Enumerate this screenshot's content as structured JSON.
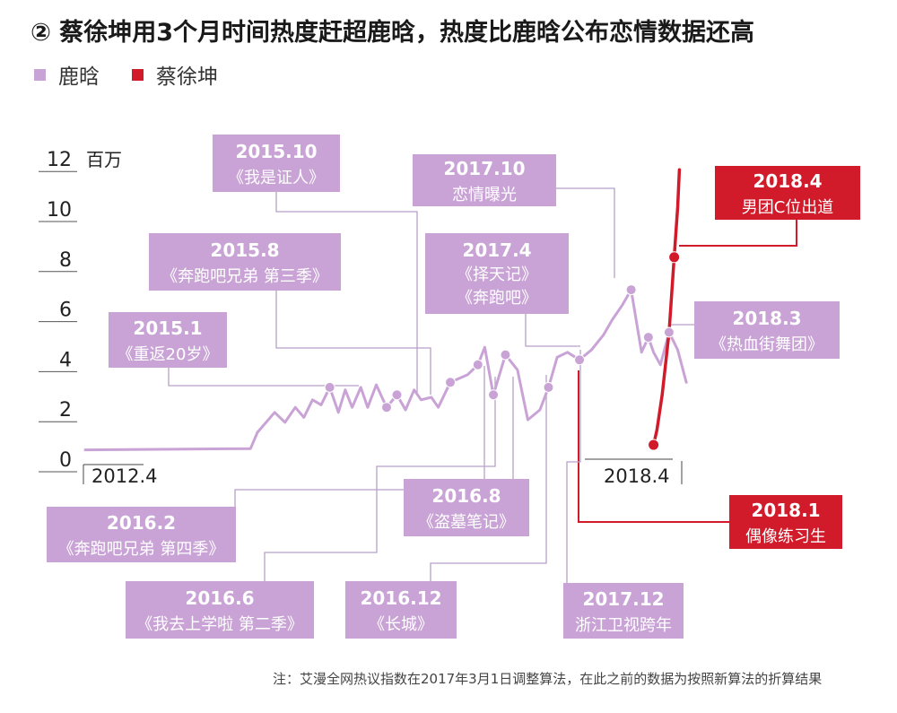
{
  "title": "② 蔡徐坤用3个月时间热度赶超鹿晗，热度比鹿晗公布恋情数据还高",
  "legend": [
    {
      "name": "鹿晗",
      "color": "#c9a3d6"
    },
    {
      "name": "蔡徐坤",
      "color": "#d11a2a"
    }
  ],
  "note": "注：艾漫全网热议指数在2017年3月1日调整算法，在此之前的数据为按照新算法的折算结果",
  "chart_data": {
    "type": "line",
    "yunit": "百万",
    "ylim": [
      0,
      12
    ],
    "yticks": [
      "0",
      "2",
      "4",
      "6",
      "8",
      "10",
      "12"
    ],
    "x_labels": [
      "2012.4",
      "2018.4"
    ],
    "series": [
      {
        "name": "鹿晗",
        "color": "#c9a3d6",
        "points": [
          [
            0.0,
            0.3
          ],
          [
            4.8,
            0.35
          ],
          [
            5.0,
            1.0
          ],
          [
            5.5,
            1.8
          ],
          [
            5.8,
            1.4
          ],
          [
            6.1,
            2.0
          ],
          [
            6.35,
            1.6
          ],
          [
            6.6,
            2.3
          ],
          [
            6.85,
            2.1
          ],
          [
            7.1,
            2.8
          ],
          [
            7.35,
            1.8
          ],
          [
            7.55,
            2.7
          ],
          [
            7.75,
            2.0
          ],
          [
            8.0,
            2.8
          ],
          [
            8.2,
            2.0
          ],
          [
            8.45,
            2.9
          ],
          [
            8.75,
            2.0
          ],
          [
            9.05,
            2.5
          ],
          [
            9.3,
            1.9
          ],
          [
            9.55,
            2.7
          ],
          [
            9.75,
            2.3
          ],
          [
            10.05,
            2.4
          ],
          [
            10.25,
            2.0
          ],
          [
            10.6,
            3.0
          ],
          [
            11.1,
            3.3
          ],
          [
            11.4,
            3.7
          ],
          [
            11.6,
            4.4
          ],
          [
            11.85,
            2.5
          ],
          [
            12.2,
            4.1
          ],
          [
            12.55,
            3.5
          ],
          [
            12.85,
            1.5
          ],
          [
            13.2,
            1.9
          ],
          [
            13.45,
            2.8
          ],
          [
            13.7,
            4.0
          ],
          [
            14.0,
            4.2
          ],
          [
            14.35,
            3.9
          ],
          [
            14.7,
            4.3
          ],
          [
            15.05,
            4.9
          ],
          [
            15.3,
            5.5
          ],
          [
            15.6,
            6.1
          ],
          [
            15.85,
            6.7
          ],
          [
            16.15,
            4.2
          ],
          [
            16.35,
            4.8
          ],
          [
            16.5,
            4.2
          ],
          [
            16.7,
            3.7
          ],
          [
            16.95,
            5.0
          ],
          [
            17.2,
            4.3
          ],
          [
            17.45,
            3.0
          ]
        ]
      },
      {
        "name": "蔡徐坤",
        "color": "#d11a2a",
        "points": [
          [
            16.5,
            0.5
          ],
          [
            16.6,
            1.1
          ],
          [
            16.75,
            2.5
          ],
          [
            16.95,
            5.0
          ],
          [
            17.1,
            8.0
          ],
          [
            17.2,
            10.0
          ],
          [
            17.25,
            11.5
          ]
        ]
      }
    ],
    "markers": [
      {
        "series": 0,
        "x": 7.1,
        "y": 2.8
      },
      {
        "series": 0,
        "x": 8.75,
        "y": 2.0
      },
      {
        "series": 0,
        "x": 9.05,
        "y": 2.5
      },
      {
        "series": 0,
        "x": 10.6,
        "y": 3.0
      },
      {
        "series": 0,
        "x": 11.4,
        "y": 3.7
      },
      {
        "series": 0,
        "x": 11.85,
        "y": 2.5
      },
      {
        "series": 0,
        "x": 12.2,
        "y": 4.1
      },
      {
        "series": 0,
        "x": 13.45,
        "y": 2.8
      },
      {
        "series": 0,
        "x": 14.35,
        "y": 3.9
      },
      {
        "series": 0,
        "x": 15.85,
        "y": 6.7
      },
      {
        "series": 0,
        "x": 16.35,
        "y": 4.8
      },
      {
        "series": 0,
        "x": 16.95,
        "y": 5.0
      },
      {
        "series": 1,
        "x": 16.5,
        "y": 0.5
      },
      {
        "series": 1,
        "x": 17.1,
        "y": 8.0
      }
    ],
    "annotations": [
      {
        "lines": [
          "2015.10",
          "《我是证人》"
        ],
        "style": "purple"
      },
      {
        "lines": [
          "2015.8",
          "《奔跑吧兄弟 第三季》"
        ],
        "style": "purple"
      },
      {
        "lines": [
          "2015.1",
          "《重返20岁》"
        ],
        "style": "purple"
      },
      {
        "lines": [
          "2017.10",
          "恋情曝光"
        ],
        "style": "purple"
      },
      {
        "lines": [
          "2017.4",
          "《择天记》",
          "《奔跑吧》"
        ],
        "style": "purple"
      },
      {
        "lines": [
          "2018.3",
          "《热血街舞团》"
        ],
        "style": "purple"
      },
      {
        "lines": [
          "2018.4",
          "男团C位出道"
        ],
        "style": "red"
      },
      {
        "lines": [
          "2018.1",
          "偶像练习生"
        ],
        "style": "red"
      },
      {
        "lines": [
          "2016.2",
          "《奔跑吧兄弟 第四季》"
        ],
        "style": "purple"
      },
      {
        "lines": [
          "2016.8",
          "《盗墓笔记》"
        ],
        "style": "purple"
      },
      {
        "lines": [
          "2016.6",
          "《我去上学啦 第二季》"
        ],
        "style": "purple"
      },
      {
        "lines": [
          "2016.12",
          "《长城》"
        ],
        "style": "purple"
      },
      {
        "lines": [
          "2017.12",
          "浙江卫视跨年"
        ],
        "style": "purple"
      }
    ]
  }
}
